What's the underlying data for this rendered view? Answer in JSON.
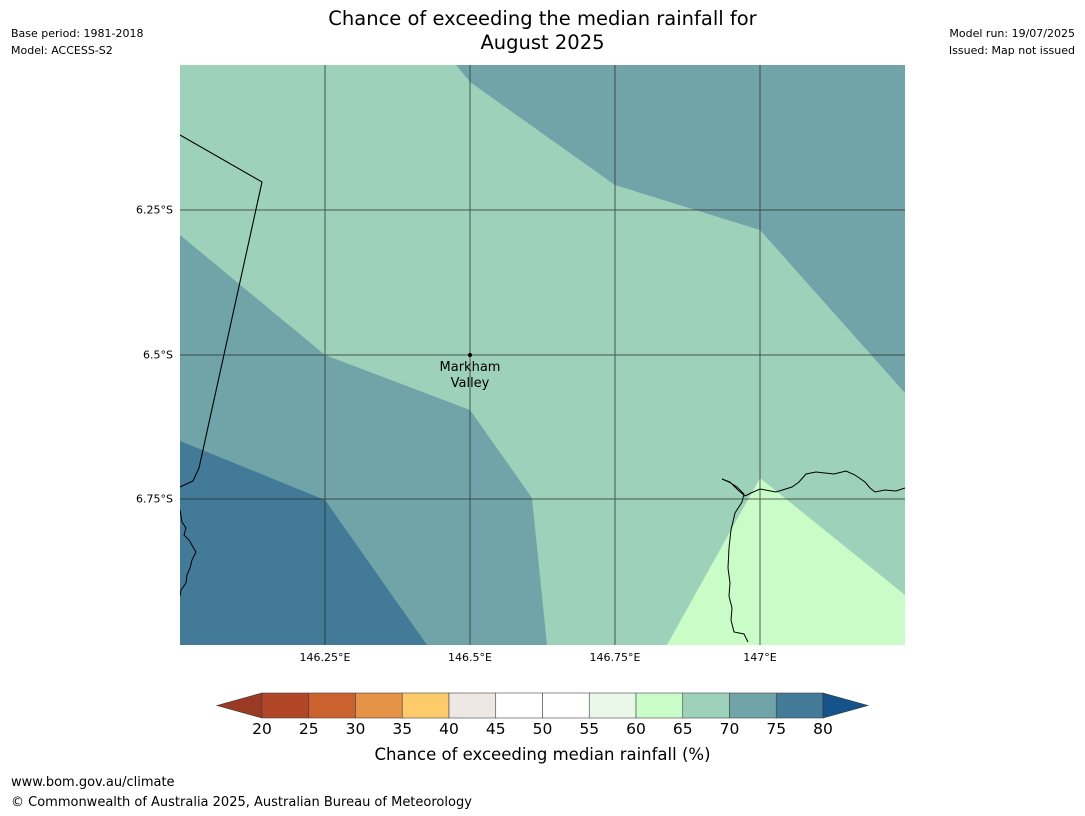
{
  "header": {
    "title_line1": "Chance of exceeding the median rainfall for",
    "title_line2": "August 2025",
    "base_period": "Base period: 1981-2018",
    "model": "Model: ACCESS-S2",
    "model_run": "Model run: 19/07/2025",
    "issued": "Issued: Map not issued"
  },
  "map": {
    "lat_ticks": [
      "6.25°S",
      "6.5°S",
      "6.75°S"
    ],
    "lon_ticks": [
      "146.25°E",
      "146.5°E",
      "146.75°E",
      "147°E"
    ],
    "place": {
      "name_line1": "Markham",
      "name_line2": "Valley"
    },
    "colors": {
      "band_65_70": "#9ed1b9",
      "band_70_75": "#70a4a8",
      "band_75_80": "#427a98",
      "band_60_65": "#cafcc8",
      "grid": "#2a2a2a"
    }
  },
  "colorbar": {
    "label": "Chance of exceeding median rainfall (%)",
    "ticks": [
      "20",
      "25",
      "30",
      "35",
      "40",
      "45",
      "50",
      "55",
      "60",
      "65",
      "70",
      "75",
      "80"
    ],
    "colors": [
      "#b04626",
      "#cc6130",
      "#e49347",
      "#fecb6a",
      "#ede8e3",
      "#ffffff",
      "#ffffff",
      "#eaf8ea",
      "#cafcc8",
      "#9ed1b9",
      "#70a4a8",
      "#427a98"
    ],
    "under_color": "#9b3a24",
    "over_color": "#17538b"
  },
  "footer": {
    "url": "www.bom.gov.au/climate",
    "copyright": "© Commonwealth of Australia 2025, Australian Bureau of Meteorology"
  }
}
